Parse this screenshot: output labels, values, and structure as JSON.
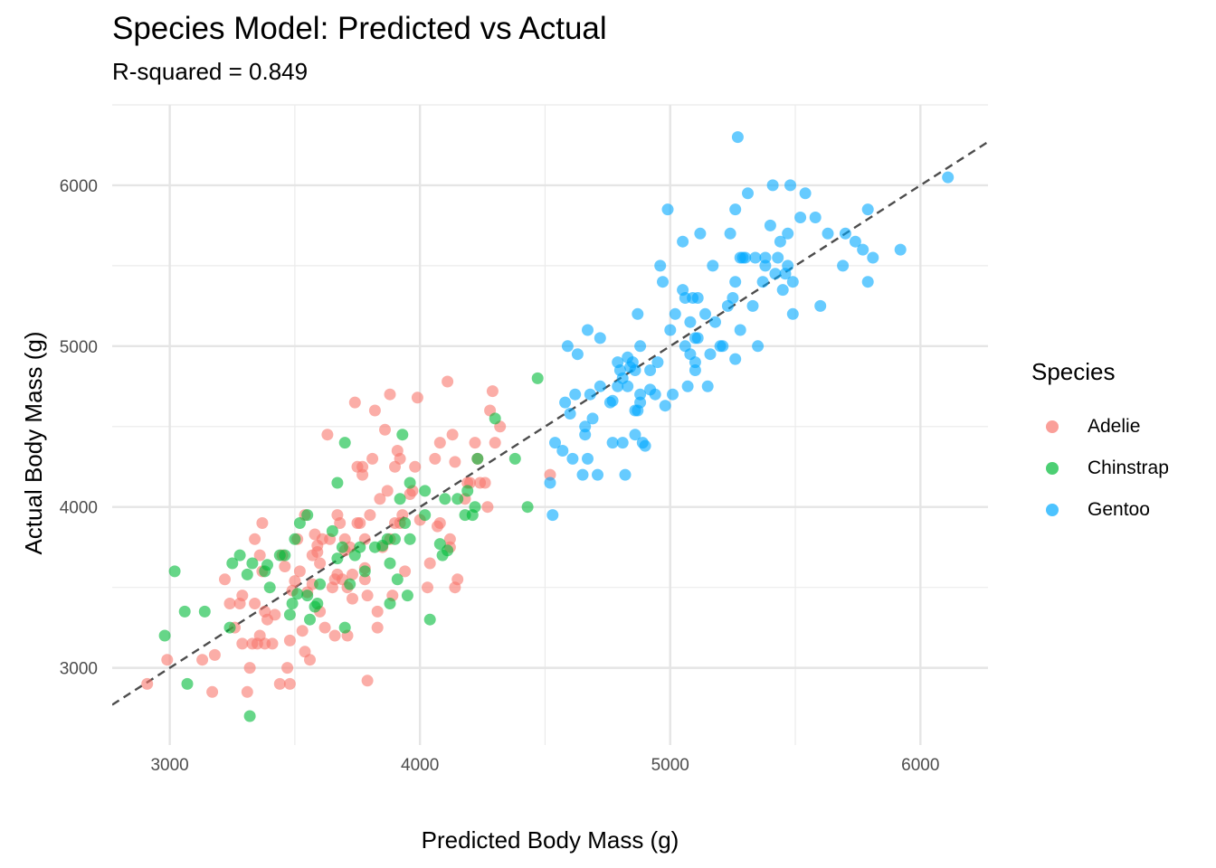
{
  "chart_data": {
    "type": "scatter",
    "title": "Species Model: Predicted vs Actual",
    "subtitle": "R-squared = 0.849",
    "xlabel": "Predicted Body Mass (g)",
    "ylabel": "Actual Body Mass (g)",
    "xlim": [
      2770,
      6270
    ],
    "ylim": [
      2520,
      6500
    ],
    "x_ticks": [
      3000,
      4000,
      5000,
      6000
    ],
    "y_ticks": [
      3000,
      4000,
      5000,
      6000
    ],
    "grid": true,
    "reference_line": {
      "type": "identity",
      "style": "dashed",
      "color": "#4d4d4d"
    },
    "legend": {
      "title": "Species",
      "position": "right"
    },
    "series": [
      {
        "name": "Adelie",
        "color": "#F8766D",
        "points": [
          [
            2910,
            2900
          ],
          [
            2990,
            3050
          ],
          [
            3130,
            3050
          ],
          [
            3170,
            2850
          ],
          [
            3180,
            3080
          ],
          [
            3220,
            3550
          ],
          [
            3240,
            3400
          ],
          [
            3260,
            3250
          ],
          [
            3280,
            3400
          ],
          [
            3290,
            3150
          ],
          [
            3290,
            3450
          ],
          [
            3310,
            2850
          ],
          [
            3320,
            3000
          ],
          [
            3330,
            3150
          ],
          [
            3340,
            3400
          ],
          [
            3340,
            3800
          ],
          [
            3350,
            3150
          ],
          [
            3360,
            3200
          ],
          [
            3360,
            3700
          ],
          [
            3370,
            3600
          ],
          [
            3370,
            3900
          ],
          [
            3380,
            3150
          ],
          [
            3380,
            3350
          ],
          [
            3390,
            3300
          ],
          [
            3410,
            3150
          ],
          [
            3420,
            3330
          ],
          [
            3440,
            2900
          ],
          [
            3450,
            3700
          ],
          [
            3460,
            3630
          ],
          [
            3470,
            3000
          ],
          [
            3480,
            2900
          ],
          [
            3480,
            3170
          ],
          [
            3490,
            3480
          ],
          [
            3500,
            3540
          ],
          [
            3510,
            3800
          ],
          [
            3520,
            3600
          ],
          [
            3530,
            3230
          ],
          [
            3540,
            3100
          ],
          [
            3540,
            3950
          ],
          [
            3550,
            3470
          ],
          [
            3560,
            3050
          ],
          [
            3570,
            3520
          ],
          [
            3570,
            3700
          ],
          [
            3580,
            3830
          ],
          [
            3590,
            3720
          ],
          [
            3590,
            3760
          ],
          [
            3600,
            3350
          ],
          [
            3600,
            3650
          ],
          [
            3610,
            3800
          ],
          [
            3620,
            3250
          ],
          [
            3630,
            4450
          ],
          [
            3640,
            3800
          ],
          [
            3650,
            3500
          ],
          [
            3660,
            3200
          ],
          [
            3660,
            3550
          ],
          [
            3670,
            3950
          ],
          [
            3670,
            3580
          ],
          [
            3680,
            3900
          ],
          [
            3690,
            3550
          ],
          [
            3700,
            3800
          ],
          [
            3700,
            3730
          ],
          [
            3710,
            3500
          ],
          [
            3710,
            3200
          ],
          [
            3720,
            3750
          ],
          [
            3730,
            3580
          ],
          [
            3730,
            3430
          ],
          [
            3740,
            4650
          ],
          [
            3750,
            4250
          ],
          [
            3750,
            3900
          ],
          [
            3760,
            3900
          ],
          [
            3770,
            4250
          ],
          [
            3770,
            4200
          ],
          [
            3780,
            3800
          ],
          [
            3780,
            3550
          ],
          [
            3780,
            3620
          ],
          [
            3790,
            3450
          ],
          [
            3790,
            2920
          ],
          [
            3800,
            3950
          ],
          [
            3810,
            4300
          ],
          [
            3820,
            4600
          ],
          [
            3830,
            3350
          ],
          [
            3830,
            3250
          ],
          [
            3840,
            4050
          ],
          [
            3850,
            3750
          ],
          [
            3860,
            4480
          ],
          [
            3870,
            4100
          ],
          [
            3880,
            3800
          ],
          [
            3880,
            4700
          ],
          [
            3890,
            3450
          ],
          [
            3900,
            3900
          ],
          [
            3900,
            4250
          ],
          [
            3910,
            4350
          ],
          [
            3920,
            4300
          ],
          [
            3920,
            3900
          ],
          [
            3930,
            3950
          ],
          [
            3940,
            3600
          ],
          [
            3960,
            4080
          ],
          [
            3970,
            4100
          ],
          [
            3980,
            4250
          ],
          [
            3990,
            4680
          ],
          [
            4000,
            3920
          ],
          [
            4030,
            3500
          ],
          [
            4040,
            3650
          ],
          [
            4060,
            4300
          ],
          [
            4070,
            3880
          ],
          [
            4080,
            3900
          ],
          [
            4080,
            4400
          ],
          [
            4110,
            4780
          ],
          [
            4120,
            3800
          ],
          [
            4120,
            3750
          ],
          [
            4130,
            4450
          ],
          [
            4140,
            4280
          ],
          [
            4140,
            3500
          ],
          [
            4150,
            3550
          ],
          [
            4180,
            4050
          ],
          [
            4190,
            4150
          ],
          [
            4200,
            4150
          ],
          [
            4220,
            4400
          ],
          [
            4230,
            4300
          ],
          [
            4240,
            4150
          ],
          [
            4260,
            4150
          ],
          [
            4270,
            4000
          ],
          [
            4280,
            4600
          ],
          [
            4290,
            4720
          ],
          [
            4300,
            4400
          ],
          [
            4320,
            4500
          ],
          [
            4520,
            4200
          ]
        ]
      },
      {
        "name": "Chinstrap",
        "color": "#00BA38",
        "points": [
          [
            2980,
            3200
          ],
          [
            3020,
            3600
          ],
          [
            3060,
            3350
          ],
          [
            3070,
            2900
          ],
          [
            3140,
            3350
          ],
          [
            3240,
            3250
          ],
          [
            3250,
            3650
          ],
          [
            3280,
            3700
          ],
          [
            3310,
            3580
          ],
          [
            3320,
            2700
          ],
          [
            3330,
            3650
          ],
          [
            3380,
            3600
          ],
          [
            3390,
            3640
          ],
          [
            3400,
            3500
          ],
          [
            3440,
            3700
          ],
          [
            3460,
            3700
          ],
          [
            3480,
            3330
          ],
          [
            3490,
            3400
          ],
          [
            3500,
            3800
          ],
          [
            3510,
            3460
          ],
          [
            3520,
            3900
          ],
          [
            3550,
            3950
          ],
          [
            3550,
            3450
          ],
          [
            3560,
            3300
          ],
          [
            3580,
            3380
          ],
          [
            3590,
            3400
          ],
          [
            3600,
            3520
          ],
          [
            3650,
            3850
          ],
          [
            3670,
            4150
          ],
          [
            3670,
            3680
          ],
          [
            3690,
            3750
          ],
          [
            3700,
            4400
          ],
          [
            3700,
            3250
          ],
          [
            3720,
            3520
          ],
          [
            3740,
            3700
          ],
          [
            3760,
            3750
          ],
          [
            3780,
            3600
          ],
          [
            3820,
            3750
          ],
          [
            3850,
            3760
          ],
          [
            3870,
            3800
          ],
          [
            3880,
            3400
          ],
          [
            3880,
            3650
          ],
          [
            3900,
            3800
          ],
          [
            3910,
            3550
          ],
          [
            3920,
            4050
          ],
          [
            3930,
            4450
          ],
          [
            3940,
            3900
          ],
          [
            3950,
            3450
          ],
          [
            3960,
            3800
          ],
          [
            3960,
            4150
          ],
          [
            4020,
            4100
          ],
          [
            4020,
            3950
          ],
          [
            4040,
            3300
          ],
          [
            4080,
            3770
          ],
          [
            4090,
            3700
          ],
          [
            4100,
            4050
          ],
          [
            4110,
            3730
          ],
          [
            4150,
            4050
          ],
          [
            4180,
            3950
          ],
          [
            4190,
            4100
          ],
          [
            4210,
            3950
          ],
          [
            4220,
            4000
          ],
          [
            4230,
            4300
          ],
          [
            4300,
            4550
          ],
          [
            4380,
            4300
          ],
          [
            4430,
            4000
          ],
          [
            4470,
            4800
          ]
        ]
      },
      {
        "name": "Gentoo",
        "color": "#00A9FF",
        "points": [
          [
            4520,
            4150
          ],
          [
            4530,
            3950
          ],
          [
            4540,
            4400
          ],
          [
            4570,
            4350
          ],
          [
            4580,
            4650
          ],
          [
            4590,
            5000
          ],
          [
            4600,
            4580
          ],
          [
            4610,
            4300
          ],
          [
            4620,
            4700
          ],
          [
            4630,
            4950
          ],
          [
            4650,
            4200
          ],
          [
            4660,
            4500
          ],
          [
            4660,
            4450
          ],
          [
            4670,
            5100
          ],
          [
            4670,
            4300
          ],
          [
            4680,
            4700
          ],
          [
            4690,
            4550
          ],
          [
            4710,
            4200
          ],
          [
            4720,
            4750
          ],
          [
            4720,
            5050
          ],
          [
            4760,
            4650
          ],
          [
            4770,
            4400
          ],
          [
            4770,
            4660
          ],
          [
            4790,
            4900
          ],
          [
            4790,
            4750
          ],
          [
            4800,
            4850
          ],
          [
            4810,
            4400
          ],
          [
            4810,
            4800
          ],
          [
            4820,
            4200
          ],
          [
            4830,
            4930
          ],
          [
            4830,
            4750
          ],
          [
            4840,
            4870
          ],
          [
            4850,
            4900
          ],
          [
            4860,
            4600
          ],
          [
            4860,
            4850
          ],
          [
            4860,
            4450
          ],
          [
            4870,
            5200
          ],
          [
            4870,
            4600
          ],
          [
            4880,
            4700
          ],
          [
            4880,
            4650
          ],
          [
            4880,
            5000
          ],
          [
            4890,
            4400
          ],
          [
            4900,
            4380
          ],
          [
            4920,
            4850
          ],
          [
            4920,
            4730
          ],
          [
            4940,
            4700
          ],
          [
            4950,
            4900
          ],
          [
            4960,
            5500
          ],
          [
            4970,
            5400
          ],
          [
            4980,
            4630
          ],
          [
            4990,
            5850
          ],
          [
            5000,
            5100
          ],
          [
            5010,
            4700
          ],
          [
            5020,
            5200
          ],
          [
            5050,
            5350
          ],
          [
            5050,
            5650
          ],
          [
            5060,
            5300
          ],
          [
            5060,
            5000
          ],
          [
            5070,
            4750
          ],
          [
            5080,
            5150
          ],
          [
            5080,
            4950
          ],
          [
            5090,
            5300
          ],
          [
            5100,
            5050
          ],
          [
            5100,
            4900
          ],
          [
            5100,
            4850
          ],
          [
            5110,
            5050
          ],
          [
            5110,
            5300
          ],
          [
            5120,
            5700
          ],
          [
            5140,
            5200
          ],
          [
            5150,
            4750
          ],
          [
            5160,
            4950
          ],
          [
            5170,
            5500
          ],
          [
            5180,
            5150
          ],
          [
            5200,
            5000
          ],
          [
            5210,
            5000
          ],
          [
            5230,
            5250
          ],
          [
            5240,
            5700
          ],
          [
            5250,
            5300
          ],
          [
            5260,
            5400
          ],
          [
            5260,
            4920
          ],
          [
            5260,
            5850
          ],
          [
            5270,
            6300
          ],
          [
            5280,
            5550
          ],
          [
            5280,
            5100
          ],
          [
            5290,
            5550
          ],
          [
            5300,
            5550
          ],
          [
            5310,
            5950
          ],
          [
            5330,
            5250
          ],
          [
            5340,
            5550
          ],
          [
            5350,
            5000
          ],
          [
            5370,
            5400
          ],
          [
            5380,
            5500
          ],
          [
            5380,
            5550
          ],
          [
            5400,
            5750
          ],
          [
            5410,
            6000
          ],
          [
            5420,
            5450
          ],
          [
            5430,
            5550
          ],
          [
            5440,
            5650
          ],
          [
            5450,
            5350
          ],
          [
            5460,
            5450
          ],
          [
            5470,
            5700
          ],
          [
            5470,
            5500
          ],
          [
            5480,
            6000
          ],
          [
            5490,
            5400
          ],
          [
            5490,
            5200
          ],
          [
            5520,
            5800
          ],
          [
            5540,
            5950
          ],
          [
            5580,
            5800
          ],
          [
            5600,
            5250
          ],
          [
            5630,
            5700
          ],
          [
            5690,
            5500
          ],
          [
            5700,
            5700
          ],
          [
            5740,
            5650
          ],
          [
            5770,
            5600
          ],
          [
            5790,
            5400
          ],
          [
            5790,
            5850
          ],
          [
            5810,
            5550
          ],
          [
            5920,
            5600
          ],
          [
            6110,
            6050
          ]
        ]
      }
    ]
  }
}
